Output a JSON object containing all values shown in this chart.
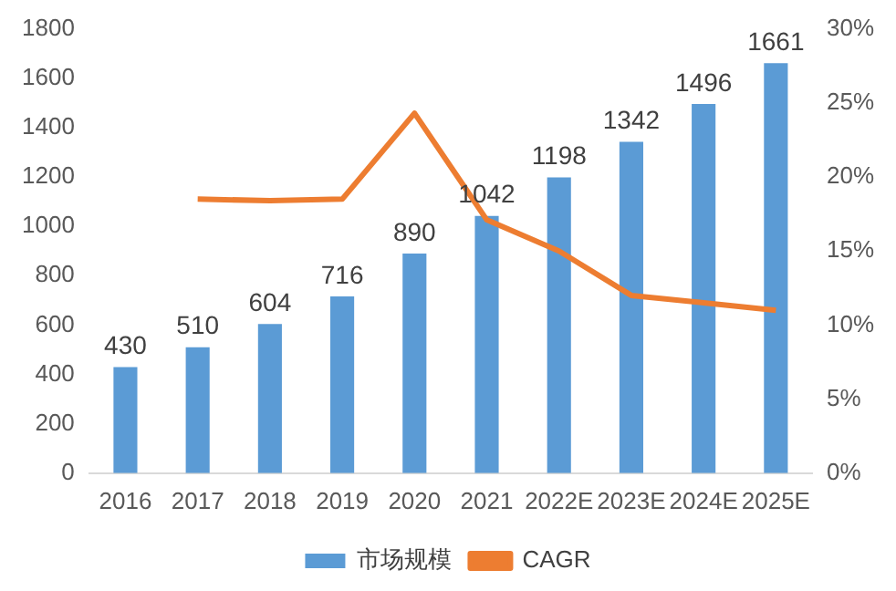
{
  "chart_data": {
    "type": "bar",
    "categories": [
      "2016",
      "2017",
      "2018",
      "2019",
      "2020",
      "2021",
      "2022E",
      "2023E",
      "2024E",
      "2025E"
    ],
    "series": [
      {
        "name": "市场规模",
        "color": "#5b9bd5",
        "values": [
          430,
          510,
          604,
          716,
          890,
          1042,
          1198,
          1342,
          1496,
          1661
        ],
        "value_labels": [
          "430",
          "510",
          "604",
          "716",
          "890",
          "1042",
          "1198",
          "1342",
          "1496",
          "1661"
        ]
      },
      {
        "name": "CAGR",
        "type": "line",
        "axis": "y2",
        "color": "#ed7d31",
        "values": [
          null,
          18.5,
          18.4,
          18.5,
          24.3,
          17.1,
          15.0,
          12.0,
          11.5,
          11.0
        ]
      }
    ],
    "ylim": [
      0,
      1800
    ],
    "yticks": [
      0,
      200,
      400,
      600,
      800,
      1000,
      1200,
      1400,
      1600,
      1800
    ],
    "y2lim": [
      0,
      30
    ],
    "y2ticks": [
      {
        "value": 0,
        "label": "0%"
      },
      {
        "value": 5,
        "label": "5%"
      },
      {
        "value": 10,
        "label": "10%"
      },
      {
        "value": 15,
        "label": "15%"
      },
      {
        "value": 20,
        "label": "20%"
      },
      {
        "value": 25,
        "label": "25%"
      },
      {
        "value": 30,
        "label": "30%"
      }
    ],
    "grid": false,
    "legend": "bottom",
    "marker": "none"
  }
}
